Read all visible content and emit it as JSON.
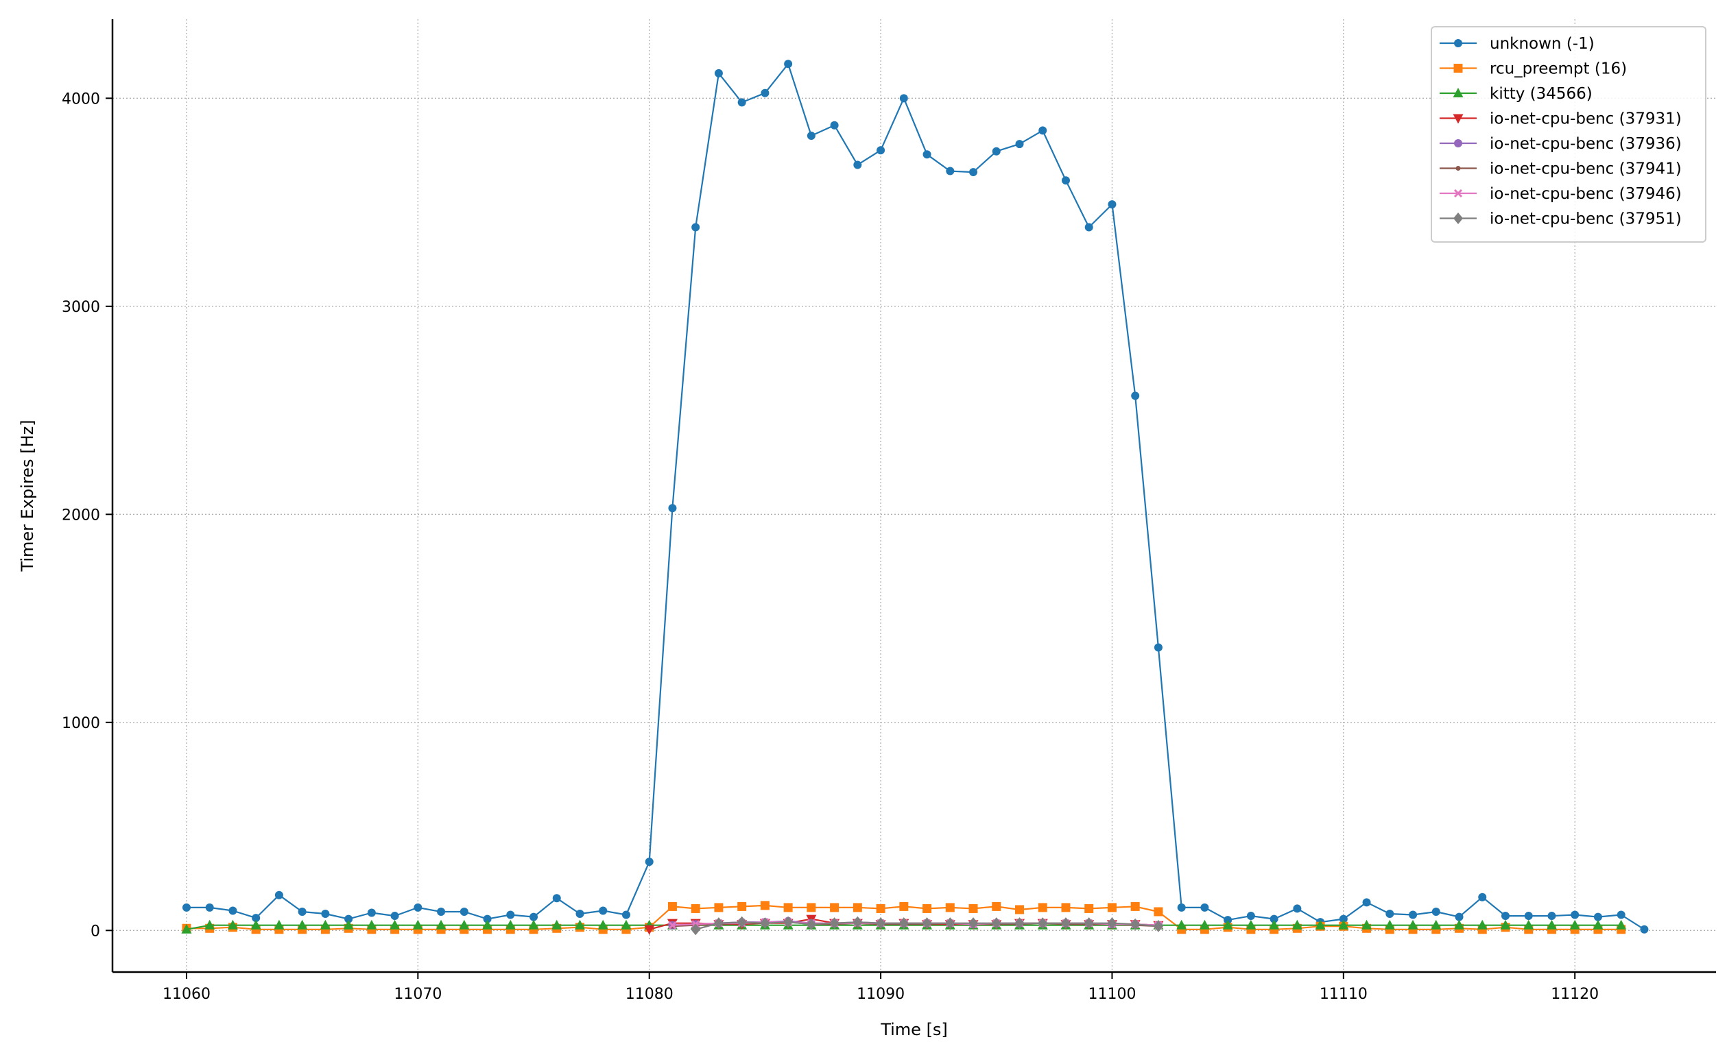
{
  "chart_data": {
    "type": "line",
    "title": "",
    "xlabel": "Time [s]",
    "ylabel": "Timer Expires [Hz]",
    "xlim": [
      11056.8,
      11126.1
    ],
    "ylim": [
      -200,
      4380
    ],
    "xticks": [
      11060,
      11070,
      11080,
      11090,
      11100,
      11110,
      11120
    ],
    "yticks": [
      0,
      1000,
      2000,
      3000,
      4000
    ],
    "grid": true,
    "legend_position": "top-right",
    "series": [
      {
        "name": "unknown (-1)",
        "color": "#1f77b4",
        "marker": "circle",
        "x": [
          11060,
          11061,
          11062,
          11063,
          11064,
          11065,
          11066,
          11067,
          11068,
          11069,
          11070,
          11071,
          11072,
          11073,
          11074,
          11075,
          11076,
          11077,
          11078,
          11079,
          11080,
          11081,
          11082,
          11083,
          11084,
          11085,
          11086,
          11087,
          11088,
          11089,
          11090,
          11091,
          11092,
          11093,
          11094,
          11095,
          11096,
          11097,
          11098,
          11099,
          11100,
          11101,
          11102,
          11103,
          11104,
          11105,
          11106,
          11107,
          11108,
          11109,
          11110,
          11111,
          11112,
          11113,
          11114,
          11115,
          11116,
          11117,
          11118,
          11119,
          11120,
          11121,
          11122,
          11123
        ],
        "y": [
          110,
          110,
          95,
          60,
          170,
          90,
          80,
          55,
          85,
          70,
          110,
          90,
          90,
          55,
          75,
          65,
          155,
          80,
          95,
          75,
          330,
          2030,
          3380,
          4120,
          3980,
          4025,
          4165,
          3820,
          3870,
          3680,
          3750,
          4000,
          3730,
          3650,
          3645,
          3745,
          3780,
          3845,
          3605,
          3380,
          3490,
          2570,
          1360,
          110,
          110,
          50,
          70,
          55,
          105,
          40,
          55,
          135,
          80,
          75,
          90,
          65,
          160,
          70,
          70,
          70,
          75,
          65,
          75,
          5
        ]
      },
      {
        "name": "rcu_preempt (16)",
        "color": "#ff7f0e",
        "marker": "square",
        "x": [
          11060,
          11061,
          11062,
          11063,
          11064,
          11065,
          11066,
          11067,
          11068,
          11069,
          11070,
          11071,
          11072,
          11073,
          11074,
          11075,
          11076,
          11077,
          11078,
          11079,
          11080,
          11081,
          11082,
          11083,
          11084,
          11085,
          11086,
          11087,
          11088,
          11089,
          11090,
          11091,
          11092,
          11093,
          11094,
          11095,
          11096,
          11097,
          11098,
          11099,
          11100,
          11101,
          11102,
          11103,
          11104,
          11105,
          11106,
          11107,
          11108,
          11109,
          11110,
          11111,
          11112,
          11113,
          11114,
          11115,
          11116,
          11117,
          11118,
          11119,
          11120,
          11121,
          11122
        ],
        "y": [
          10,
          10,
          15,
          5,
          5,
          5,
          5,
          10,
          5,
          5,
          5,
          5,
          5,
          5,
          5,
          5,
          10,
          15,
          5,
          5,
          15,
          115,
          105,
          110,
          115,
          120,
          110,
          110,
          110,
          110,
          105,
          115,
          105,
          110,
          105,
          115,
          100,
          110,
          110,
          105,
          110,
          115,
          90,
          5,
          5,
          15,
          5,
          5,
          10,
          20,
          20,
          10,
          5,
          5,
          5,
          10,
          5,
          15,
          5,
          5,
          5,
          5,
          5
        ]
      },
      {
        "name": "kitty (34566)",
        "color": "#2ca02c",
        "marker": "triangle-up",
        "x": [
          11060,
          11061,
          11062,
          11063,
          11064,
          11065,
          11066,
          11067,
          11068,
          11069,
          11070,
          11071,
          11072,
          11073,
          11074,
          11075,
          11076,
          11077,
          11078,
          11079,
          11080,
          11081,
          11082,
          11083,
          11084,
          11085,
          11086,
          11087,
          11088,
          11089,
          11090,
          11091,
          11092,
          11093,
          11094,
          11095,
          11096,
          11097,
          11098,
          11099,
          11100,
          11101,
          11102,
          11103,
          11104,
          11105,
          11106,
          11107,
          11108,
          11109,
          11110,
          11111,
          11112,
          11113,
          11114,
          11115,
          11116,
          11117,
          11118,
          11119,
          11120,
          11121,
          11122
        ],
        "y": [
          5,
          25,
          25,
          25,
          25,
          25,
          25,
          25,
          25,
          25,
          25,
          25,
          25,
          25,
          25,
          25,
          25,
          25,
          25,
          25,
          25,
          25,
          25,
          25,
          25,
          25,
          25,
          25,
          25,
          25,
          25,
          25,
          25,
          25,
          25,
          25,
          25,
          25,
          25,
          25,
          25,
          25,
          25,
          25,
          25,
          25,
          25,
          25,
          25,
          25,
          25,
          25,
          25,
          25,
          25,
          25,
          25,
          25,
          25,
          25,
          25,
          25,
          25
        ]
      },
      {
        "name": "io-net-cpu-benc (37931)",
        "color": "#d62728",
        "marker": "triangle-down",
        "x": [
          11080,
          11081,
          11082,
          11083,
          11084,
          11085,
          11086,
          11087,
          11088,
          11089,
          11090,
          11091,
          11092,
          11093,
          11094,
          11095,
          11096,
          11097,
          11098,
          11099,
          11100,
          11101,
          11102
        ],
        "y": [
          5,
          35,
          35,
          30,
          30,
          35,
          35,
          55,
          35,
          35,
          30,
          35,
          30,
          30,
          30,
          30,
          35,
          35,
          30,
          30,
          30,
          30,
          25
        ]
      },
      {
        "name": "io-net-cpu-benc (37936)",
        "color": "#9467bd",
        "marker": "circle",
        "x": [
          11081,
          11082,
          11083,
          11084,
          11085,
          11086,
          11087,
          11088,
          11089,
          11090,
          11091,
          11092,
          11093,
          11094,
          11095,
          11096,
          11097,
          11098,
          11099,
          11100,
          11101,
          11102
        ],
        "y": [
          25,
          30,
          35,
          40,
          40,
          45,
          35,
          35,
          40,
          35,
          35,
          35,
          35,
          30,
          35,
          35,
          35,
          35,
          35,
          30,
          30,
          25
        ]
      },
      {
        "name": "io-net-cpu-benc (37941)",
        "color": "#8c564b",
        "marker": "dot",
        "x": [
          11081,
          11082,
          11083,
          11084,
          11085,
          11086,
          11087,
          11088,
          11089,
          11090,
          11091,
          11092,
          11093,
          11094,
          11095,
          11096,
          11097,
          11098,
          11099,
          11100,
          11101,
          11102
        ],
        "y": [
          20,
          25,
          30,
          35,
          35,
          40,
          30,
          30,
          35,
          30,
          30,
          30,
          35,
          30,
          30,
          30,
          35,
          30,
          30,
          30,
          25,
          20
        ]
      },
      {
        "name": "io-net-cpu-benc (37946)",
        "color": "#e377c2",
        "marker": "x",
        "x": [
          11081,
          11082,
          11083,
          11084,
          11085,
          11086,
          11087,
          11088,
          11089,
          11090,
          11091,
          11092,
          11093,
          11094,
          11095,
          11096,
          11097,
          11098,
          11099,
          11100,
          11101,
          11102
        ],
        "y": [
          25,
          30,
          35,
          35,
          40,
          40,
          35,
          35,
          35,
          35,
          35,
          35,
          35,
          30,
          35,
          35,
          35,
          35,
          35,
          30,
          30,
          25
        ]
      },
      {
        "name": "io-net-cpu-benc (37951)",
        "color": "#7f7f7f",
        "marker": "diamond",
        "x": [
          11082,
          11083,
          11084,
          11085,
          11086,
          11087,
          11088,
          11089,
          11090,
          11091,
          11092,
          11093,
          11094,
          11095,
          11096,
          11097,
          11098,
          11099,
          11100,
          11101,
          11102
        ],
        "y": [
          5,
          35,
          40,
          35,
          40,
          30,
          35,
          40,
          35,
          35,
          35,
          35,
          35,
          35,
          35,
          35,
          35,
          35,
          35,
          30,
          20
        ]
      }
    ]
  }
}
